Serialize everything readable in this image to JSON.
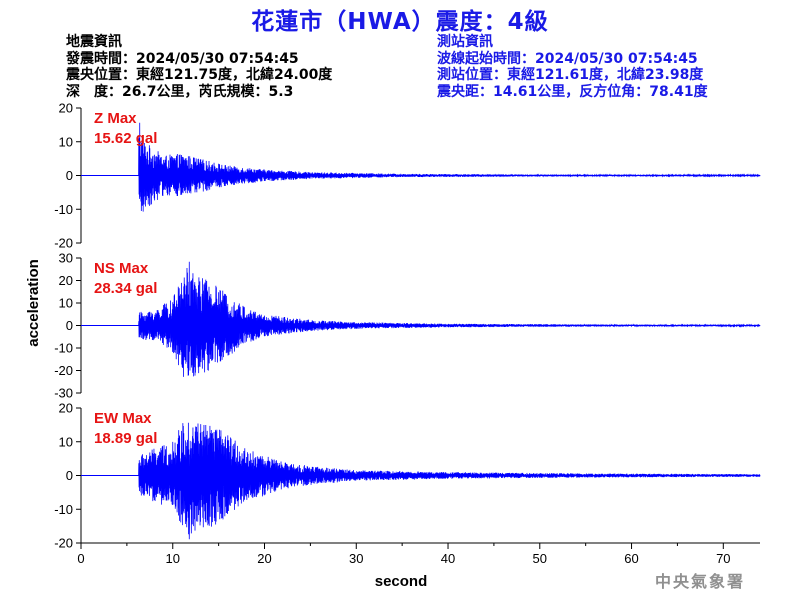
{
  "header": {
    "title": "花蓮市（HWA）震度：4級"
  },
  "earthquake_info": {
    "heading": "地震資訊",
    "origin_time": "發震時間：2024/05/30 07:54:45",
    "epicenter": "震央位置：東經121.75度，北緯24.00度",
    "depth_magnitude": "深　度：26.7公里，芮氏規模：5.3"
  },
  "station_info": {
    "heading": "測站資訊",
    "wave_start": "波線起始時間：2024/05/30 07:54:45",
    "location": "測站位置：東經121.61度，北緯23.98度",
    "distance_azimuth": "震央距：14.61公里，反方位角：78.41度"
  },
  "credit": "中央氣象署",
  "colors": {
    "trace": "#0000ff",
    "max_label": "#e61414",
    "title": "#1a1ae6",
    "axis": "#000000"
  },
  "chart_data": {
    "type": "line",
    "xlabel": "second",
    "ylabel": "acceleration",
    "xlim": [
      0,
      74
    ],
    "xticks": [
      0,
      10,
      20,
      30,
      40,
      50,
      60,
      70
    ],
    "grid": false,
    "panels": [
      {
        "name": "Z",
        "max_label": "Z Max",
        "max_value": "15.62 gal",
        "ylim": [
          -20,
          20
        ],
        "yticks": [
          -20,
          -10,
          0,
          10,
          20
        ],
        "onset_s": 6.3,
        "peak": 15.62,
        "envelope": [
          [
            6.3,
            14
          ],
          [
            7,
            10
          ],
          [
            9,
            6
          ],
          [
            11,
            6.5
          ],
          [
            13,
            5
          ],
          [
            16,
            3
          ],
          [
            20,
            1.8
          ],
          [
            25,
            1.0
          ],
          [
            35,
            0.5
          ],
          [
            50,
            0.3
          ],
          [
            74,
            0.2
          ]
        ]
      },
      {
        "name": "NS",
        "max_label": "NS Max",
        "max_value": "28.34 gal",
        "ylim": [
          -30,
          30
        ],
        "yticks": [
          -30,
          -20,
          -10,
          0,
          10,
          20,
          30
        ],
        "onset_s": 6.3,
        "peak": 28.34,
        "envelope": [
          [
            6.3,
            6
          ],
          [
            8,
            7
          ],
          [
            10,
            12
          ],
          [
            11.5,
            26
          ],
          [
            13,
            22
          ],
          [
            14,
            20
          ],
          [
            16,
            14
          ],
          [
            18,
            8
          ],
          [
            20,
            5
          ],
          [
            25,
            2.5
          ],
          [
            30,
            1.5
          ],
          [
            40,
            0.8
          ],
          [
            55,
            0.5
          ],
          [
            74,
            0.3
          ]
        ]
      },
      {
        "name": "EW",
        "max_label": "EW Max",
        "max_value": "18.89 gal",
        "ylim": [
          -20,
          20
        ],
        "yticks": [
          -20,
          -10,
          0,
          10,
          20
        ],
        "onset_s": 6.3,
        "peak": 18.89,
        "envelope": [
          [
            6.3,
            6
          ],
          [
            8,
            8
          ],
          [
            10,
            10
          ],
          [
            11.5,
            18
          ],
          [
            13,
            16
          ],
          [
            14.5,
            15
          ],
          [
            16,
            12
          ],
          [
            18,
            8
          ],
          [
            20,
            6
          ],
          [
            22,
            4
          ],
          [
            26,
            2.5
          ],
          [
            30,
            1.6
          ],
          [
            40,
            1.0
          ],
          [
            55,
            0.6
          ],
          [
            74,
            0.4
          ]
        ]
      }
    ]
  }
}
